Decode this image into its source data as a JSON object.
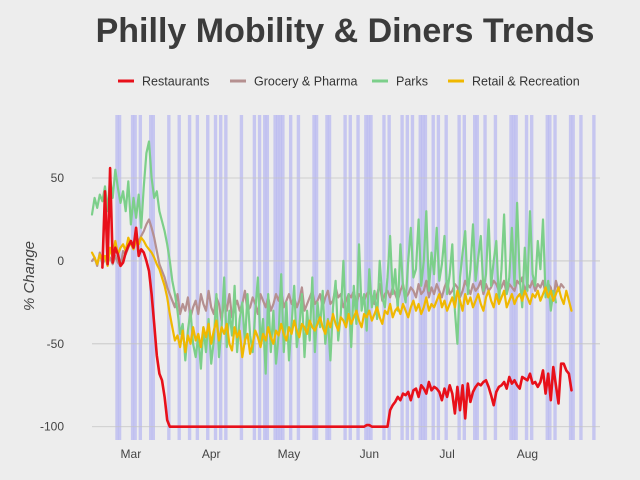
{
  "chart_data": {
    "type": "line",
    "title": "Philly Mobility & Diners Trends",
    "xlabel": "",
    "ylabel": "% Change",
    "ylim": [
      -108,
      88
    ],
    "xlim": [
      0,
      196
    ],
    "x_unit": "day index (0 = Feb 15)",
    "y_ticks": [
      50,
      0,
      -50,
      -100
    ],
    "y_tick_labels": [
      "50",
      "0",
      "-50",
      "-100"
    ],
    "x_ticks": [
      {
        "day": 15,
        "label": "Mar"
      },
      {
        "day": 46,
        "label": "Apr"
      },
      {
        "day": 76,
        "label": "May"
      },
      {
        "day": 107,
        "label": "Jun"
      },
      {
        "day": 137,
        "label": "Jul"
      },
      {
        "day": 168,
        "label": "Aug"
      }
    ],
    "grid": true,
    "legend_position": "top",
    "highlight_color": "#b8b8f0",
    "highlight_days": [
      9,
      10,
      15,
      16,
      18,
      22,
      23,
      29,
      33,
      37,
      40,
      44,
      47,
      49,
      51,
      57,
      62,
      64,
      66,
      67,
      70,
      71,
      72,
      73,
      76,
      79,
      85,
      86,
      90,
      91,
      97,
      99,
      102,
      105,
      106,
      107,
      112,
      114,
      119,
      121,
      123,
      126,
      127,
      128,
      131,
      133,
      136,
      141,
      143,
      147,
      148,
      151,
      155,
      161,
      162,
      163,
      167,
      169,
      175,
      176,
      178,
      184,
      185,
      188,
      193
    ],
    "series": [
      {
        "name": "Restaurants",
        "color": "#e8101a",
        "x_start": 4,
        "values": [
          -4,
          42,
          -2,
          56,
          -1,
          8,
          4,
          -3,
          -1,
          5,
          9,
          12,
          8,
          20,
          3,
          7,
          5,
          0,
          -6,
          -20,
          -38,
          -57,
          -68,
          -72,
          -82,
          -96,
          -100,
          -100,
          -100,
          -100,
          -100,
          -100,
          -100,
          -100,
          -100,
          -100,
          -100,
          -100,
          -100,
          -100,
          -100,
          -100,
          -100,
          -100,
          -100,
          -100,
          -100,
          -100,
          -100,
          -100,
          -100,
          -100,
          -100,
          -100,
          -100,
          -100,
          -100,
          -100,
          -100,
          -100,
          -100,
          -100,
          -100,
          -100,
          -100,
          -100,
          -100,
          -100,
          -100,
          -100,
          -100,
          -100,
          -100,
          -100,
          -100,
          -100,
          -100,
          -100,
          -100,
          -100,
          -100,
          -100,
          -100,
          -100,
          -100,
          -100,
          -100,
          -100,
          -100,
          -100,
          -100,
          -100,
          -100,
          -100,
          -100,
          -100,
          -100,
          -100,
          -100,
          -100,
          -100,
          -100,
          -99,
          -99,
          -100,
          -100,
          -100,
          -100,
          -100,
          -100,
          -100,
          -90,
          -87,
          -85,
          -82,
          -84,
          -80,
          -81,
          -79,
          -84,
          -78,
          -77,
          -82,
          -75,
          -77,
          -80,
          -73,
          -78,
          -76,
          -77,
          -79,
          -84,
          -77,
          -82,
          -75,
          -80,
          -92,
          -76,
          -90,
          -75,
          -95,
          -74,
          -85,
          -79,
          -76,
          -74,
          -75,
          -73,
          -72,
          -76,
          -81,
          -87,
          -79,
          -76,
          -75,
          -73,
          -77,
          -70,
          -74,
          -72,
          -75,
          -77,
          -70,
          -71,
          -72,
          -68,
          -74,
          -73,
          -76,
          -73,
          -66,
          -80,
          -68,
          -84,
          -64,
          -75,
          -86,
          -62,
          -62,
          -66,
          -68,
          -78
        ]
      },
      {
        "name": "Grocery & Pharma",
        "color": "#b59090",
        "x_start": 0,
        "values": [
          0,
          2,
          -3,
          5,
          -2,
          1,
          -1,
          2,
          -2,
          3,
          -1,
          -3,
          6,
          4,
          8,
          12,
          10,
          14,
          12,
          15,
          18,
          22,
          25,
          20,
          14,
          6,
          -2,
          -6,
          -10,
          -16,
          -20,
          -24,
          -28,
          -20,
          -32,
          -26,
          -30,
          -22,
          -34,
          -28,
          -24,
          -32,
          -20,
          -26,
          -30,
          -18,
          -28,
          -32,
          -22,
          -26,
          -36,
          -24,
          -30,
          -20,
          -34,
          -28,
          -24,
          -30,
          -26,
          -18,
          -30,
          -28,
          -22,
          -26,
          -32,
          -20,
          -24,
          -28,
          -22,
          -30,
          -26,
          -20,
          -24,
          -18,
          -28,
          -24,
          -20,
          -26,
          -22,
          -28,
          -24,
          -16,
          -30,
          -26,
          -22,
          -18,
          -26,
          -24,
          -20,
          -28,
          -22,
          -18,
          -26,
          -24,
          -16,
          -22,
          -20,
          -28,
          -24,
          -20,
          -22,
          -18,
          -26,
          -20,
          -22,
          -24,
          -20,
          -18,
          -22,
          -26,
          -20,
          -14,
          -24,
          -20,
          -18,
          -22,
          -16,
          -20,
          -24,
          -18,
          -14,
          -22,
          -20,
          -16,
          -18,
          -22,
          -14,
          -20,
          -18,
          -12,
          -22,
          -16,
          -20,
          -14,
          -18,
          -22,
          -16,
          -12,
          -20,
          -18,
          -14,
          -16,
          -22,
          -18,
          -12,
          -16,
          -20,
          -14,
          -18,
          -16,
          -12,
          -20,
          -14,
          -18,
          -16,
          -12,
          -14,
          -18,
          -16,
          -12,
          -20,
          -14,
          -16,
          -18,
          -12,
          -14,
          -10,
          -18,
          -14,
          -16,
          -12,
          -18,
          -14,
          -16,
          -12,
          -20,
          -14,
          -16,
          -24,
          -12,
          -18,
          -14,
          -16
        ]
      },
      {
        "name": "Parks",
        "color": "#7ccf8a",
        "x_start": 0,
        "values": [
          28,
          38,
          32,
          40,
          36,
          45,
          30,
          50,
          38,
          55,
          44,
          35,
          42,
          30,
          48,
          22,
          38,
          26,
          40,
          20,
          45,
          65,
          72,
          50,
          38,
          42,
          30,
          24,
          18,
          10,
          0,
          -12,
          -20,
          -30,
          -44,
          -38,
          -60,
          -42,
          -30,
          -50,
          -58,
          -45,
          -65,
          -40,
          -55,
          -35,
          -62,
          -48,
          -20,
          -58,
          -40,
          -10,
          -52,
          -30,
          -45,
          -15,
          -55,
          -35,
          -25,
          -50,
          -20,
          -45,
          -55,
          -30,
          -10,
          -50,
          -35,
          -68,
          -20,
          -55,
          -30,
          -62,
          -45,
          -8,
          -55,
          -25,
          -60,
          -38,
          -15,
          -52,
          -40,
          -20,
          -58,
          -30,
          -48,
          -10,
          -55,
          -25,
          -40,
          -18,
          -50,
          -35,
          -60,
          -28,
          -12,
          -48,
          -32,
          0,
          -40,
          -20,
          -52,
          -15,
          -38,
          10,
          -30,
          -20,
          -42,
          -5,
          -28,
          -18,
          -35,
          0,
          -22,
          -28,
          -10,
          15,
          -20,
          -5,
          -30,
          10,
          -15,
          -25,
          0,
          20,
          -10,
          -5,
          25,
          -15,
          0,
          30,
          -18,
          5,
          -8,
          20,
          -12,
          -2,
          15,
          -20,
          -8,
          10,
          -30,
          -50,
          -10,
          5,
          18,
          -20,
          -5,
          22,
          -12,
          2,
          15,
          -18,
          -8,
          25,
          -15,
          0,
          12,
          -25,
          -5,
          28,
          -20,
          -10,
          20,
          -15,
          35,
          -10,
          -28,
          8,
          -18,
          30,
          -8,
          -15,
          12,
          -5,
          25,
          -22,
          -12,
          -30,
          -18,
          -25
        ]
      },
      {
        "name": "Retail & Recreation",
        "color": "#f0b800",
        "x_start": 0,
        "values": [
          5,
          2,
          -2,
          4,
          0,
          3,
          -3,
          8,
          2,
          12,
          4,
          8,
          10,
          6,
          14,
          10,
          7,
          12,
          10,
          14,
          12,
          9,
          7,
          5,
          2,
          -2,
          -5,
          -10,
          -15,
          -22,
          -32,
          -40,
          -48,
          -45,
          -52,
          -42,
          -55,
          -45,
          -50,
          -40,
          -48,
          -44,
          -52,
          -40,
          -46,
          -38,
          -50,
          -42,
          -36,
          -48,
          -40,
          -44,
          -38,
          -50,
          -54,
          -40,
          -46,
          -42,
          -58,
          -48,
          -44,
          -56,
          -50,
          -42,
          -46,
          -52,
          -44,
          -48,
          -40,
          -46,
          -50,
          -42,
          -45,
          -38,
          -44,
          -48,
          -40,
          -44,
          -36,
          -42,
          -46,
          -38,
          -40,
          -44,
          -36,
          -40,
          -42,
          -38,
          -34,
          -40,
          -44,
          -36,
          -40,
          -32,
          -38,
          -42,
          -34,
          -36,
          -40,
          -32,
          -38,
          -34,
          -30,
          -36,
          -40,
          -32,
          -34,
          -30,
          -36,
          -32,
          -28,
          -34,
          -38,
          -30,
          -32,
          -26,
          -34,
          -30,
          -28,
          -32,
          -26,
          -30,
          -34,
          -28,
          -24,
          -30,
          -26,
          -32,
          -28,
          -22,
          -30,
          -26,
          -28,
          -24,
          -20,
          -28,
          -24,
          -30,
          -26,
          -22,
          -28,
          -18,
          -24,
          -30,
          -20,
          -26,
          -22,
          -28,
          -24,
          -20,
          -26,
          -30,
          -22,
          -18,
          -24,
          -28,
          -20,
          -26,
          -22,
          -18,
          -28,
          -24,
          -20,
          -26,
          -22,
          -20,
          -24,
          -18,
          -22,
          -26,
          -20,
          -22,
          -18,
          -24,
          -20,
          -16,
          -22,
          -18,
          -24,
          -20,
          -16,
          -22,
          -26,
          -18,
          -24,
          -30
        ]
      }
    ]
  }
}
